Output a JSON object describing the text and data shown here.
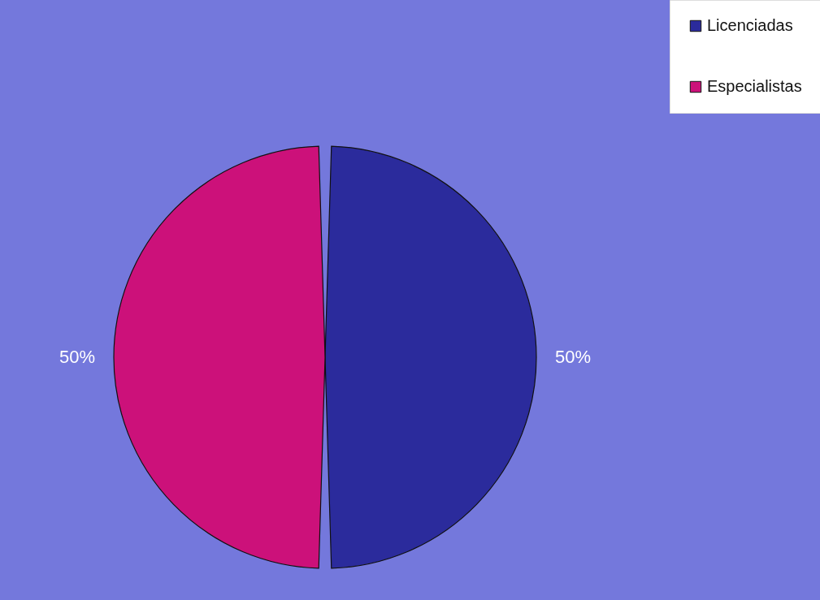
{
  "chart_data": {
    "type": "pie",
    "categories": [
      "Licenciadas",
      "Especialistas"
    ],
    "values": [
      50,
      50
    ],
    "colors": [
      "#2b2b9c",
      "#cc117a"
    ],
    "value_labels": [
      "50%",
      "50%"
    ],
    "legend": "top right"
  }
}
